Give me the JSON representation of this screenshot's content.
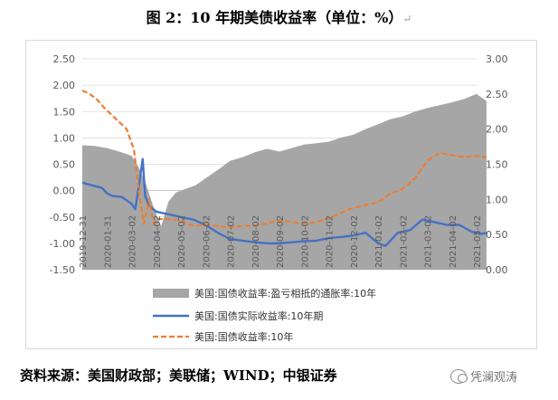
{
  "title": "图 2：10 年期美债收益率（单位：%）",
  "return_mark": "↵",
  "source": "资料来源：美国财政部；美联储；WIND；中银证券",
  "watermark": "凭澜观涛",
  "colors": {
    "real": "#4472c4",
    "nominal": "#ed7d31",
    "breakeven": "#a6a6a6"
  },
  "chart_data": {
    "type": "line",
    "left_axis": {
      "min": -1.5,
      "max": 2.5,
      "ticks": [
        "2.50",
        "2.00",
        "1.50",
        "1.00",
        "0.50",
        "0.00",
        "-0.50",
        "-1.00",
        "-1.50"
      ]
    },
    "right_axis": {
      "min": 0,
      "max": 3,
      "ticks": [
        "3.00",
        "2.50",
        "2.00",
        "1.50",
        "1.00",
        "0.50",
        "0.00"
      ]
    },
    "x_ticks": [
      "2019-12-31",
      "2020-01-31",
      "2020-03-02",
      "2020-04-02",
      "2020-05-02",
      "2020-06-02",
      "2020-07-02",
      "2020-08-02",
      "2020-09-02",
      "2020-10-02",
      "2020-11-02",
      "2020-12-02",
      "2021-01-02",
      "2021-02-02",
      "2021-03-02",
      "2021-04-02",
      "2021-05-02"
    ],
    "series": [
      {
        "name": "美国:国债收益率:盈亏相抵的通胀率:10年",
        "axis": "right",
        "style": "area",
        "x": [
          0,
          0.5,
          1,
          1.5,
          2,
          2.3,
          2.6,
          2.9,
          3.2,
          3.5,
          3.8,
          4.2,
          4.6,
          5,
          5.5,
          6,
          6.5,
          7,
          7.5,
          8,
          8.5,
          9,
          9.5,
          10,
          10.5,
          11,
          11.5,
          12,
          12.5,
          13,
          13.5,
          14,
          14.5,
          15,
          15.5,
          16,
          16.4
        ],
        "values": [
          1.77,
          1.76,
          1.73,
          1.68,
          1.62,
          1.45,
          1.2,
          0.88,
          0.62,
          0.97,
          1.1,
          1.15,
          1.2,
          1.3,
          1.42,
          1.55,
          1.6,
          1.67,
          1.72,
          1.68,
          1.73,
          1.78,
          1.8,
          1.82,
          1.88,
          1.92,
          2.0,
          2.07,
          2.14,
          2.18,
          2.25,
          2.3,
          2.34,
          2.38,
          2.43,
          2.5,
          2.4
        ]
      },
      {
        "name": "美国:国债实际收益率:10年期",
        "axis": "left",
        "style": "solid",
        "x": [
          0,
          0.4,
          0.8,
          1,
          1.2,
          1.6,
          2,
          2.15,
          2.3,
          2.45,
          2.55,
          2.7,
          3,
          3.5,
          4,
          4.5,
          5,
          5.5,
          6,
          6.5,
          7,
          7.5,
          8,
          8.5,
          9,
          9.5,
          10,
          10.5,
          11,
          11.5,
          12,
          12.3,
          12.8,
          13.3,
          13.8,
          14.3,
          14.8,
          15.3,
          15.8,
          16.2,
          16.4
        ],
        "values": [
          0.15,
          0.1,
          0.05,
          -0.05,
          -0.1,
          -0.12,
          -0.25,
          -0.35,
          0.1,
          0.6,
          -0.1,
          -0.28,
          -0.4,
          -0.45,
          -0.5,
          -0.55,
          -0.65,
          -0.8,
          -0.92,
          -0.95,
          -0.98,
          -1.0,
          -1.0,
          -0.98,
          -0.96,
          -0.95,
          -0.9,
          -0.88,
          -0.85,
          -0.8,
          -1.0,
          -1.05,
          -0.8,
          -0.75,
          -0.55,
          -0.6,
          -0.65,
          -0.65,
          -0.78,
          -0.82,
          -0.8
        ]
      },
      {
        "name": "美国:国债收益率:10年",
        "axis": "right",
        "style": "dashed",
        "x": [
          0,
          0.3,
          0.6,
          0.9,
          1.2,
          1.5,
          1.8,
          2.1,
          2.3,
          2.5,
          2.7,
          2.9,
          3.1,
          3.5,
          4,
          4.3,
          4.6,
          5,
          5.5,
          6,
          6.5,
          7,
          7.5,
          8,
          8.5,
          9,
          9.5,
          10,
          10.5,
          11,
          11.5,
          12,
          12.5,
          13,
          13.5,
          14,
          14.5,
          15,
          15.5,
          16,
          16.4
        ],
        "values": [
          2.55,
          2.5,
          2.42,
          2.3,
          2.2,
          2.1,
          2.0,
          1.7,
          1.1,
          0.65,
          1.0,
          0.65,
          0.72,
          0.72,
          0.7,
          0.65,
          0.62,
          0.65,
          0.62,
          0.6,
          0.62,
          0.63,
          0.66,
          0.7,
          0.68,
          0.65,
          0.68,
          0.73,
          0.81,
          0.88,
          0.92,
          0.96,
          1.08,
          1.15,
          1.3,
          1.55,
          1.66,
          1.63,
          1.6,
          1.62,
          1.6
        ]
      }
    ]
  }
}
